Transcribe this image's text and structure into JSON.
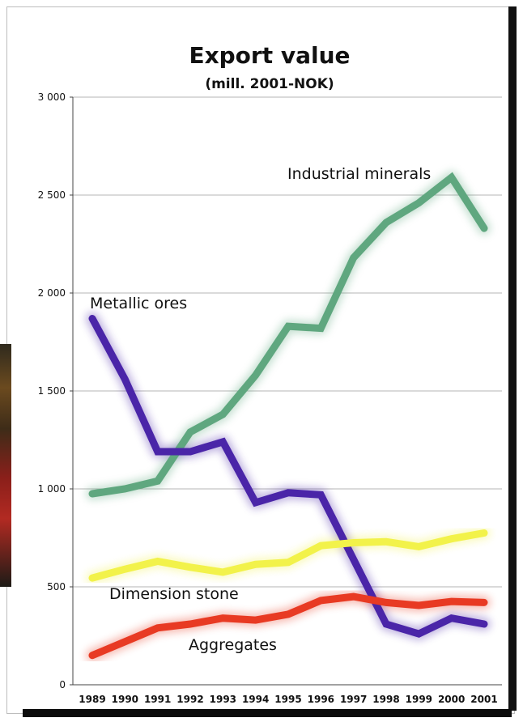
{
  "chart_data": {
    "type": "line",
    "title": "Export value",
    "subtitle": "(mill. 2001-NOK)",
    "x": [
      "1989",
      "1990",
      "1991",
      "1992",
      "1993",
      "1994",
      "1995",
      "1996",
      "1997",
      "1998",
      "1999",
      "2000",
      "2001"
    ],
    "y_ticks": [
      "0",
      "500",
      "1 000",
      "1 500",
      "2 000",
      "2 500",
      "3 000"
    ],
    "ylim": [
      0,
      3000
    ],
    "grid": true,
    "series": [
      {
        "name": "Industrial minerals",
        "color": "#5fa77f",
        "values": [
          975,
          1000,
          1040,
          1290,
          1380,
          1580,
          1830,
          1820,
          2180,
          2360,
          2460,
          2590,
          2330
        ]
      },
      {
        "name": "Metallic ores",
        "color": "#4a25a8",
        "values": [
          1870,
          1560,
          1190,
          1190,
          1240,
          930,
          980,
          970,
          640,
          310,
          260,
          340,
          310
        ]
      },
      {
        "name": "Dimension stone",
        "color": "#f2f24a",
        "values": [
          545,
          590,
          630,
          600,
          575,
          615,
          625,
          710,
          725,
          730,
          705,
          745,
          775
        ]
      },
      {
        "name": "Aggregates",
        "color": "#e83a23",
        "values": [
          150,
          220,
          290,
          310,
          340,
          330,
          360,
          430,
          450,
          420,
          405,
          425,
          420
        ]
      }
    ]
  }
}
